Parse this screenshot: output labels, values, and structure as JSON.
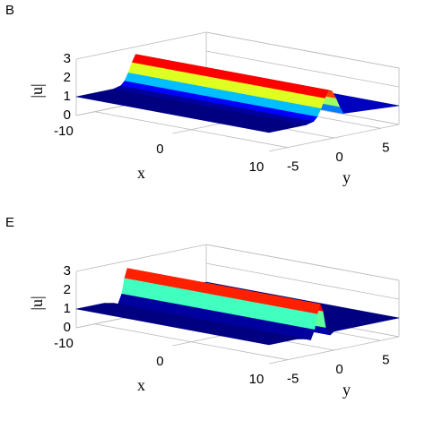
{
  "chart_data": [
    {
      "type": "surface",
      "panel_label": "B",
      "xlabel": "x",
      "ylabel": "y",
      "zlabel": "|u|",
      "xlim": [
        -10,
        10
      ],
      "ylim": [
        -7,
        7
      ],
      "zlim": [
        0,
        3
      ],
      "clim": [
        1,
        2.6
      ],
      "xticks": [
        -10,
        0,
        10
      ],
      "yticks": [
        -5,
        0,
        5
      ],
      "zticks": [
        0,
        1,
        2,
        3
      ],
      "ridge_x_range": [
        -10,
        10
      ],
      "profile_y": [
        -7,
        -3,
        -2.2,
        -1.8,
        -1.4,
        -1,
        -0.6,
        -0.2,
        0.2,
        0.6,
        1,
        7
      ],
      "profile_values": [
        1,
        1,
        1.1,
        1.3,
        1.7,
        2.2,
        2.6,
        2.5,
        2.1,
        1.6,
        1.2,
        1
      ]
    },
    {
      "type": "surface",
      "panel_label": "E",
      "xlabel": "x",
      "ylabel": "y",
      "zlabel": "|u|",
      "xlim": [
        -10,
        10
      ],
      "ylim": [
        -7,
        7
      ],
      "zlim": [
        0,
        3
      ],
      "clim": [
        1,
        2.6
      ],
      "xticks": [
        -10,
        0,
        10
      ],
      "yticks": [
        -5,
        0,
        5
      ],
      "zticks": [
        0,
        1,
        2,
        3
      ],
      "ridge_x_range": [
        -10,
        10
      ],
      "profile_y": [
        -7,
        -4,
        -3,
        -2.5,
        -2.1,
        -1.8,
        -1.5,
        -1.2,
        -0.9,
        -0.4,
        0,
        7
      ],
      "profile_values": [
        1,
        1,
        0.9,
        0.8,
        1.3,
        2.1,
        2.6,
        2.2,
        1.3,
        0.85,
        1,
        1
      ]
    }
  ]
}
